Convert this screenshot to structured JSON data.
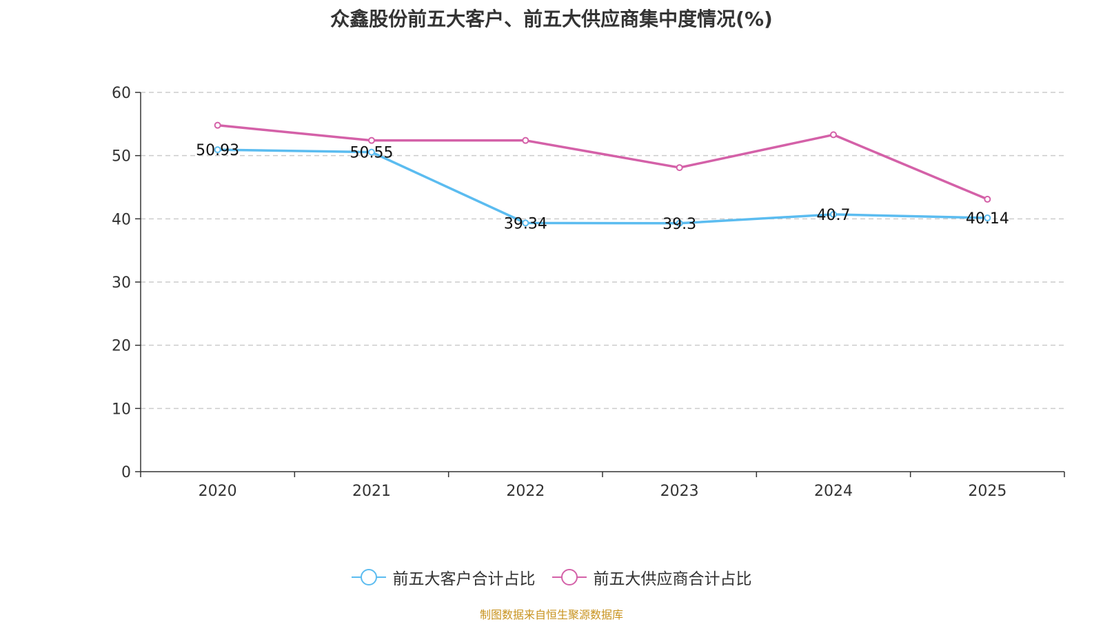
{
  "title": "众鑫股份前五大客户、前五大供应商集中度情况(%)",
  "source": "制图数据来自恒生聚源数据库",
  "chart_data": {
    "type": "line",
    "categories": [
      "2020",
      "2021",
      "2022",
      "2023",
      "2024",
      "2025"
    ],
    "ylim": [
      0,
      60
    ],
    "yticks": [
      0,
      10,
      20,
      30,
      40,
      50,
      60
    ],
    "grid": true,
    "legend_position": "bottom",
    "series": [
      {
        "name": "前五大客户合计占比",
        "color": "#5bbcf0",
        "values": [
          50.93,
          50.55,
          39.34,
          39.3,
          40.7,
          40.14
        ],
        "labels": [
          "50.93",
          "50.55",
          "39.34",
          "39.3",
          "40.7",
          "40.14"
        ]
      },
      {
        "name": "前五大供应商合计占比",
        "color": "#d461a8",
        "values": [
          54.8,
          52.4,
          52.4,
          48.1,
          53.3,
          43.1
        ]
      }
    ]
  }
}
